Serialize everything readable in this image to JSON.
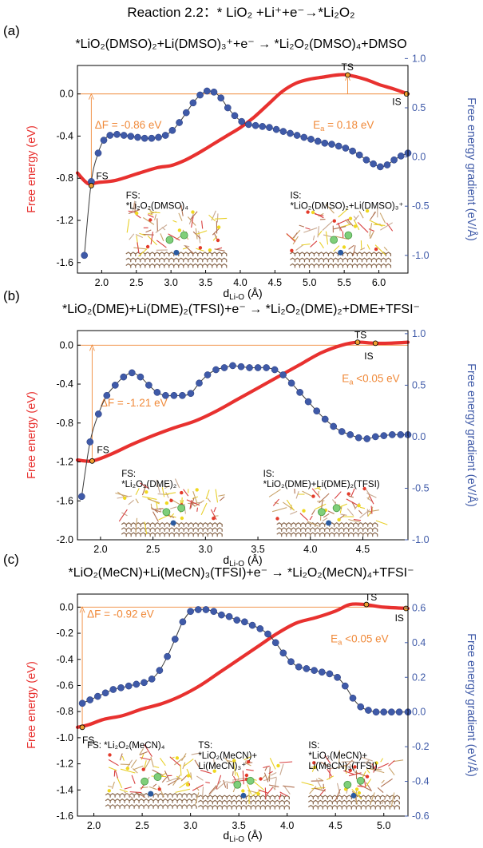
{
  "header": {
    "title_prefix": "Reaction 2.2：",
    "title_eq": "* LiO₂ +Li⁺+e⁻→*Li₂O₂"
  },
  "colors": {
    "free_energy": "#e8312f",
    "gradient": "#3f5aa8",
    "annotation": "#f08a3a",
    "marker": "#f0a030"
  },
  "chart_data": [
    {
      "type": "line",
      "panel": "(a)",
      "title": "*LiO₂(DMSO)₂+Li(DMSO)₃⁺+e⁻ → *Li₂O₂(DMSO)₄+DMSO",
      "xlabel": "d",
      "xlabel_sub": "Li-O",
      "xlabel_unit": "(Å)",
      "ylabel_left": "Free energy (eV)",
      "ylabel_right": "Free energy gradient (eV/Å)",
      "xlim": [
        1.65,
        6.42
      ],
      "ylim_left": [
        -1.7,
        0.27
      ],
      "ylim_right": [
        -1.18,
        0.93
      ],
      "xticks": [
        "2.0",
        "2.5",
        "3.0",
        "3.5",
        "4.0",
        "4.5",
        "5.0",
        "5.5",
        "6.0"
      ],
      "xtick_values": [
        2.0,
        2.5,
        3.0,
        3.5,
        4.0,
        4.5,
        5.0,
        5.5,
        6.0
      ],
      "yticks_left": [
        "0.0",
        "-0.4",
        "-0.8",
        "-1.2",
        "-1.6"
      ],
      "ytick_left_values": [
        0.0,
        -0.4,
        -0.8,
        -1.2,
        -1.6
      ],
      "yticks_right": [
        "1.0",
        "0.5",
        "0.0",
        "-0.5",
        "-1.0"
      ],
      "ytick_right_values": [
        1.0,
        0.5,
        0.0,
        -0.5,
        -1.0
      ],
      "series": [
        {
          "axis": "left",
          "style": "thick-line",
          "x": [
            1.65,
            1.8,
            1.95,
            2.2,
            2.5,
            2.8,
            3.0,
            3.2,
            3.4,
            3.6,
            3.8,
            4.0,
            4.2,
            4.4,
            4.6,
            4.8,
            5.0,
            5.2,
            5.4,
            5.55,
            5.8,
            6.0,
            6.2,
            6.42
          ],
          "y": [
            -0.75,
            -0.85,
            -0.84,
            -0.82,
            -0.76,
            -0.7,
            -0.68,
            -0.63,
            -0.56,
            -0.48,
            -0.4,
            -0.32,
            -0.22,
            -0.1,
            0.02,
            0.1,
            0.14,
            0.16,
            0.18,
            0.18,
            0.14,
            0.09,
            0.05,
            0.0
          ]
        },
        {
          "axis": "right",
          "style": "dots",
          "x": [
            1.75,
            1.85,
            1.95,
            2.03,
            2.12,
            2.22,
            2.32,
            2.42,
            2.52,
            2.62,
            2.72,
            2.82,
            2.92,
            3.02,
            3.12,
            3.22,
            3.32,
            3.42,
            3.52,
            3.62,
            3.72,
            3.82,
            3.92,
            4.02,
            4.12,
            4.22,
            4.32,
            4.42,
            4.52,
            4.62,
            4.72,
            4.82,
            4.92,
            5.02,
            5.12,
            5.22,
            5.32,
            5.42,
            5.52,
            5.62,
            5.72,
            5.82,
            5.92,
            6.02,
            6.12,
            6.22,
            6.32,
            6.42
          ],
          "y": [
            -1.0,
            -0.25,
            0.04,
            0.17,
            0.22,
            0.23,
            0.22,
            0.21,
            0.2,
            0.19,
            0.19,
            0.2,
            0.22,
            0.27,
            0.35,
            0.45,
            0.55,
            0.63,
            0.67,
            0.66,
            0.6,
            0.5,
            0.42,
            0.36,
            0.33,
            0.32,
            0.31,
            0.3,
            0.28,
            0.26,
            0.24,
            0.22,
            0.2,
            0.18,
            0.16,
            0.14,
            0.13,
            0.11,
            0.09,
            0.06,
            0.02,
            -0.03,
            -0.07,
            -0.1,
            -0.08,
            -0.03,
            0.01,
            0.04
          ]
        }
      ],
      "markers": [
        {
          "label": "FS",
          "x": 1.85,
          "y": -0.87,
          "dx": 6,
          "dy": -8
        },
        {
          "label": "TS",
          "x": 5.55,
          "y": 0.18,
          "dx": -8,
          "dy": -6
        },
        {
          "label": "IS",
          "x": 6.4,
          "y": 0.0,
          "dx": -18,
          "dy": 14
        }
      ],
      "delta": {
        "text": "ΔF = -0.86 eV",
        "x": 1.85,
        "y_from": -0.87,
        "y_to": 0.0,
        "lx": 1.9,
        "ly": -0.33
      },
      "barrier": {
        "text_main": "E",
        "text_sub": "a",
        "text_rest": " = 0.18 eV",
        "x": 5.55,
        "y_from": 0.0,
        "y_to": 0.18,
        "lx": 5.05,
        "ly": -0.33
      },
      "states": [
        {
          "lines": [
            "FS:",
            "*Li₂O₂(DMSO)₄"
          ],
          "x": 2.35,
          "y": -0.99,
          "img_x": 2.35,
          "img_w": 1.4,
          "img_y_top": -1.11,
          "img_y_bot": -1.66
        },
        {
          "lines": [
            "IS:",
            "*LiO₂(DMSO)₂+Li(DMSO)₃⁺"
          ],
          "x": 4.72,
          "y": -0.99,
          "img_x": 4.72,
          "img_w": 1.4,
          "img_y_top": -1.11,
          "img_y_bot": -1.66
        }
      ]
    },
    {
      "type": "line",
      "panel": "(b)",
      "title": "*LiO₂(DME)+Li(DME)₂(TFSI)+e⁻ → *Li₂O₂(DME)₂+DME+TFSI⁻",
      "xlabel": "d",
      "xlabel_sub": "Li-O",
      "xlabel_unit": "(Å)",
      "ylabel_left": "Free energy (eV)",
      "ylabel_right": "Free energy gradient (eV/Å)",
      "xlim": [
        1.78,
        4.93
      ],
      "ylim_left": [
        -2.0,
        0.15
      ],
      "ylim_right": [
        -1.0,
        1.03
      ],
      "xticks": [
        "2.0",
        "2.5",
        "3.0",
        "3.5",
        "4.0",
        "4.5"
      ],
      "xtick_values": [
        2.0,
        2.5,
        3.0,
        3.5,
        4.0,
        4.5
      ],
      "yticks_left": [
        "0.0",
        "-0.4",
        "-0.8",
        "-1.2",
        "-1.6",
        "-2.0"
      ],
      "ytick_left_values": [
        0.0,
        -0.4,
        -0.8,
        -1.2,
        -1.6,
        -2.0
      ],
      "yticks_right": [
        "1.0",
        "0.5",
        "0.0",
        "-0.5",
        "-1.0"
      ],
      "ytick_right_values": [
        1.0,
        0.5,
        0.0,
        -0.5,
        -1.0
      ],
      "series": [
        {
          "axis": "left",
          "style": "thick-line",
          "x": [
            1.78,
            1.92,
            2.1,
            2.3,
            2.5,
            2.7,
            2.9,
            3.1,
            3.3,
            3.5,
            3.7,
            3.9,
            4.1,
            4.3,
            4.45,
            4.6,
            4.75,
            4.93
          ],
          "y": [
            -1.18,
            -1.19,
            -1.12,
            -1.02,
            -0.93,
            -0.85,
            -0.78,
            -0.68,
            -0.56,
            -0.44,
            -0.32,
            -0.2,
            -0.08,
            0.0,
            0.03,
            0.02,
            0.02,
            0.03
          ]
        },
        {
          "axis": "right",
          "style": "dots",
          "x": [
            1.82,
            1.9,
            1.98,
            2.06,
            2.14,
            2.22,
            2.3,
            2.38,
            2.46,
            2.54,
            2.62,
            2.7,
            2.78,
            2.86,
            2.94,
            3.02,
            3.1,
            3.18,
            3.26,
            3.34,
            3.42,
            3.5,
            3.58,
            3.66,
            3.74,
            3.82,
            3.9,
            3.98,
            4.06,
            4.14,
            4.22,
            4.3,
            4.38,
            4.46,
            4.54,
            4.62,
            4.7,
            4.78,
            4.86,
            4.93
          ],
          "y": [
            -0.58,
            -0.05,
            0.22,
            0.4,
            0.5,
            0.58,
            0.62,
            0.58,
            0.5,
            0.43,
            0.4,
            0.4,
            0.4,
            0.42,
            0.52,
            0.6,
            0.65,
            0.67,
            0.69,
            0.68,
            0.67,
            0.67,
            0.67,
            0.65,
            0.6,
            0.52,
            0.43,
            0.34,
            0.25,
            0.17,
            0.1,
            0.05,
            0.02,
            -0.01,
            -0.02,
            0.0,
            0.01,
            0.02,
            0.02,
            0.02
          ]
        }
      ],
      "markers": [
        {
          "label": "FS",
          "x": 1.92,
          "y": -1.19,
          "dx": 6,
          "dy": -10
        },
        {
          "label": "TS",
          "x": 4.45,
          "y": 0.03,
          "dx": -4,
          "dy": -5
        },
        {
          "label": "IS",
          "x": 4.62,
          "y": 0.02,
          "dx": -14,
          "dy": 20
        }
      ],
      "delta": {
        "text": "ΔF = -1.21 eV",
        "x": 1.92,
        "y_from": -1.19,
        "y_to": 0.0,
        "lx": 2.0,
        "ly": -0.63
      },
      "barrier": {
        "text_main": "E",
        "text_sub": "a",
        "text_rest": " <0.05 eV",
        "x": 4.45,
        "y_from": 0.0,
        "y_to": 0.03,
        "lx": 4.3,
        "ly": -0.38
      },
      "states": [
        {
          "lines": [
            "FS:",
            "*Li₂O₂(DME)₂"
          ],
          "x": 2.2,
          "y": -1.35,
          "img_x": 2.2,
          "img_w": 0.95,
          "img_y_top": -1.46,
          "img_y_bot": -1.97
        },
        {
          "lines": [
            "IS:",
            "*LiO₂(DME)+Li(DME)₂(TFSI)"
          ],
          "x": 3.55,
          "y": -1.35,
          "img_x": 3.68,
          "img_w": 0.95,
          "img_y_top": -1.46,
          "img_y_bot": -1.97
        }
      ]
    },
    {
      "type": "line",
      "panel": "(c)",
      "title": "*LiO₂(MeCN)+Li(MeCN)₃(TFSI)+e⁻ → *Li₂O₂(MeCN)₄+TFSI⁻",
      "xlabel": "d",
      "xlabel_sub": "Li-O",
      "xlabel_unit": "(Å)",
      "ylabel_left": "Free energy (eV)",
      "ylabel_right": "Free energy gradient (eV/Å)",
      "xlim": [
        1.83,
        5.25
      ],
      "ylim_left": [
        -1.6,
        0.1
      ],
      "ylim_right": [
        -0.6,
        0.68
      ],
      "xticks": [
        "2.0",
        "2.5",
        "3.0",
        "3.5",
        "4.0",
        "4.5",
        "5.0"
      ],
      "xtick_values": [
        2.0,
        2.5,
        3.0,
        3.5,
        4.0,
        4.5,
        5.0
      ],
      "yticks_left": [
        "0.0",
        "-0.2",
        "-0.4",
        "-0.6",
        "-0.8",
        "-1.0",
        "-1.2",
        "-1.4",
        "-1.6"
      ],
      "ytick_left_values": [
        0.0,
        -0.2,
        -0.4,
        -0.6,
        -0.8,
        -1.0,
        -1.2,
        -1.4,
        -1.6
      ],
      "yticks_right": [
        "0.6",
        "0.4",
        "0.2",
        "0.0",
        "-0.2",
        "-0.4",
        "-0.6"
      ],
      "ytick_right_values": [
        0.6,
        0.4,
        0.2,
        0.0,
        -0.2,
        -0.4,
        -0.6
      ],
      "series": [
        {
          "axis": "left",
          "style": "thick-line",
          "x": [
            1.83,
            1.95,
            2.1,
            2.3,
            2.5,
            2.7,
            2.9,
            3.1,
            3.3,
            3.5,
            3.7,
            3.9,
            4.1,
            4.3,
            4.5,
            4.65,
            4.8,
            5.0,
            5.25
          ],
          "y": [
            -0.92,
            -0.9,
            -0.86,
            -0.83,
            -0.78,
            -0.74,
            -0.68,
            -0.6,
            -0.5,
            -0.4,
            -0.3,
            -0.2,
            -0.12,
            -0.08,
            -0.03,
            0.02,
            0.02,
            0.0,
            -0.01
          ]
        },
        {
          "axis": "right",
          "style": "dots",
          "x": [
            1.88,
            1.96,
            2.04,
            2.12,
            2.2,
            2.28,
            2.36,
            2.44,
            2.52,
            2.6,
            2.68,
            2.76,
            2.84,
            2.92,
            3.0,
            3.08,
            3.16,
            3.24,
            3.32,
            3.4,
            3.48,
            3.56,
            3.64,
            3.72,
            3.8,
            3.88,
            3.96,
            4.04,
            4.12,
            4.2,
            4.28,
            4.36,
            4.44,
            4.52,
            4.6,
            4.68,
            4.76,
            4.84,
            4.92,
            5.0,
            5.08,
            5.16,
            5.25
          ],
          "y": [
            0.05,
            0.07,
            0.09,
            0.11,
            0.13,
            0.14,
            0.15,
            0.16,
            0.17,
            0.19,
            0.24,
            0.32,
            0.42,
            0.52,
            0.58,
            0.59,
            0.59,
            0.58,
            0.56,
            0.55,
            0.53,
            0.52,
            0.5,
            0.48,
            0.45,
            0.4,
            0.34,
            0.29,
            0.26,
            0.25,
            0.24,
            0.23,
            0.22,
            0.2,
            0.15,
            0.08,
            0.03,
            0.01,
            0.0,
            0.0,
            0.0,
            0.0,
            0.0
          ]
        }
      ],
      "markers": [
        {
          "label": "FS",
          "x": 1.88,
          "y": -0.92,
          "dx": 0,
          "dy": 20
        },
        {
          "label": "TS",
          "x": 4.82,
          "y": 0.02,
          "dx": -2,
          "dy": -5
        },
        {
          "label": "IS",
          "x": 5.23,
          "y": -0.01,
          "dx": -14,
          "dy": 16
        }
      ],
      "delta": {
        "text": "ΔF = -0.92 eV",
        "x": 1.88,
        "y_from": -0.92,
        "y_to": 0.0,
        "lx": 1.93,
        "ly": -0.08
      },
      "barrier": {
        "text_main": "E",
        "text_sub": "a",
        "text_rest": " <0.05 eV",
        "x": 4.82,
        "y_from": 0.0,
        "y_to": 0.02,
        "lx": 4.45,
        "ly": -0.27
      },
      "states": [
        {
          "lines": [
            "FS: *Li₂O₂(MeCN)₄"
          ],
          "x": 1.93,
          "y": -1.08,
          "img_x": 2.12,
          "img_w": 0.9,
          "img_y_top": -1.12,
          "img_y_bot": -1.55
        },
        {
          "lines": [
            "TS:",
            "*LiO₂(MeCN)+",
            "Li(MeCN)₃⁺"
          ],
          "x": 3.08,
          "y": -1.08,
          "img_x": 3.08,
          "img_w": 0.9,
          "img_y_top": -1.17,
          "img_y_bot": -1.55
        },
        {
          "lines": [
            "IS:",
            "*LiO₂(MeCN)+",
            "Li(MeCN)₃(TFSI)"
          ],
          "x": 4.22,
          "y": -1.08,
          "img_x": 4.22,
          "img_w": 0.9,
          "img_y_top": -1.17,
          "img_y_bot": -1.55
        }
      ]
    }
  ]
}
